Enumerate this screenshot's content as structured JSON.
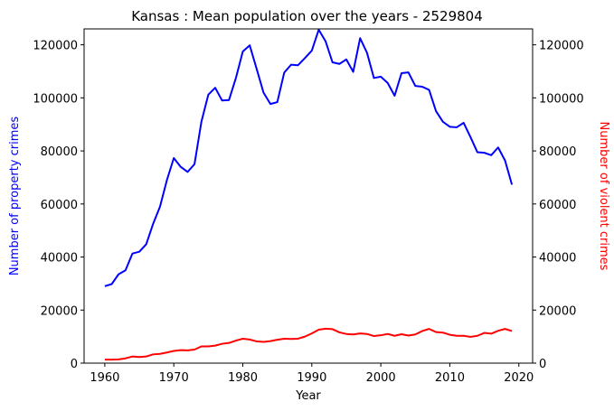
{
  "chart_data": {
    "type": "line",
    "title": "Kansas : Mean population over the years - 2529804",
    "xlabel": "Year",
    "ylabel_left": "Number of property crimes",
    "ylabel_right": "Number of violent crimes",
    "xlim": [
      1957,
      2022
    ],
    "ylim": [
      0,
      126000
    ],
    "x_ticks": [
      1960,
      1970,
      1980,
      1990,
      2000,
      2010,
      2020
    ],
    "y_ticks": [
      0,
      20000,
      40000,
      60000,
      80000,
      100000,
      120000
    ],
    "grid": false,
    "series": [
      {
        "axis": "left",
        "color": "#0000ff",
        "x": [
          1960,
          1961,
          1962,
          1963,
          1964,
          1965,
          1966,
          1967,
          1968,
          1969,
          1970,
          1971,
          1972,
          1973,
          1974,
          1975,
          1976,
          1977,
          1978,
          1979,
          1980,
          1981,
          1982,
          1983,
          1984,
          1985,
          1986,
          1987,
          1988,
          1989,
          1990,
          1991,
          1992,
          1993,
          1994,
          1995,
          1996,
          1997,
          1998,
          1999,
          2000,
          2001,
          2002,
          2003,
          2004,
          2005,
          2006,
          2007,
          2008,
          2009,
          2010,
          2011,
          2012,
          2013,
          2014,
          2015,
          2016,
          2017,
          2018,
          2019
        ],
        "values": [
          29000,
          29800,
          33500,
          35000,
          41300,
          42000,
          44800,
          52500,
          59000,
          69000,
          77300,
          74000,
          72100,
          75000,
          91000,
          101200,
          103800,
          99000,
          99200,
          107500,
          117500,
          119800,
          111000,
          102000,
          97700,
          98400,
          109500,
          112500,
          112300,
          115000,
          117800,
          125700,
          121300,
          113400,
          112800,
          114500,
          109800,
          122500,
          117000,
          107500,
          108000,
          105600,
          100800,
          109300,
          109600,
          104500,
          104200,
          103000,
          95000,
          91000,
          89100,
          88900,
          90600,
          85200,
          79500,
          79300,
          78400,
          81300,
          76400,
          67300
        ]
      },
      {
        "axis": "right",
        "color": "#ff0000",
        "x": [
          1960,
          1961,
          1962,
          1963,
          1964,
          1965,
          1966,
          1967,
          1968,
          1969,
          1970,
          1971,
          1972,
          1973,
          1974,
          1975,
          1976,
          1977,
          1978,
          1979,
          1980,
          1981,
          1982,
          1983,
          1984,
          1985,
          1986,
          1987,
          1988,
          1989,
          1990,
          1991,
          1992,
          1993,
          1994,
          1995,
          1996,
          1997,
          1998,
          1999,
          2000,
          2001,
          2002,
          2003,
          2004,
          2005,
          2006,
          2007,
          2008,
          2009,
          2010,
          2011,
          2012,
          2013,
          2014,
          2015,
          2016,
          2017,
          2018,
          2019
        ],
        "values": [
          1300,
          1300,
          1400,
          1800,
          2500,
          2300,
          2500,
          3300,
          3500,
          4000,
          4600,
          4900,
          4800,
          5100,
          6300,
          6300,
          6600,
          7300,
          7600,
          8500,
          9200,
          8900,
          8200,
          8000,
          8300,
          8800,
          9200,
          9100,
          9200,
          10000,
          11200,
          12600,
          13000,
          12800,
          11600,
          11000,
          10800,
          11200,
          11000,
          10200,
          10500,
          11000,
          10300,
          10900,
          10400,
          10800,
          12100,
          12900,
          11700,
          11500,
          10700,
          10300,
          10300,
          9900,
          10300,
          11400,
          11100,
          12200,
          12900,
          12100
        ]
      }
    ]
  }
}
